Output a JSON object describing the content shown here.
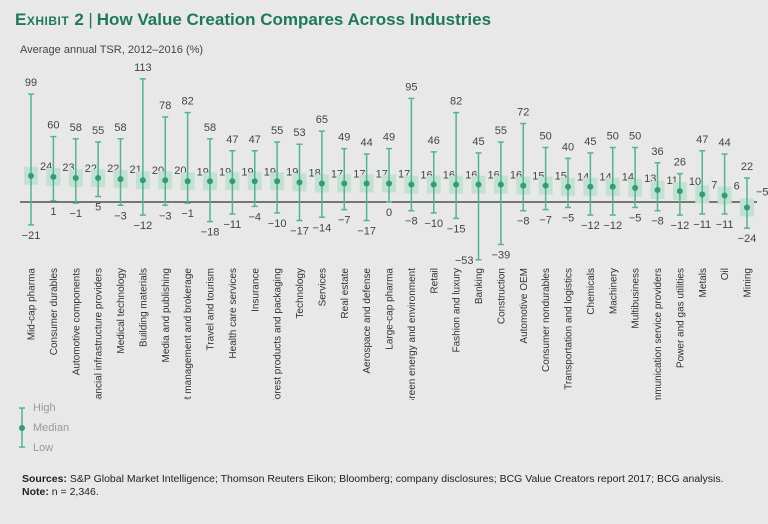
{
  "header": {
    "exhibit": "Exhibit 2",
    "title": "How Value Creation Compares Across Industries"
  },
  "chart_data": {
    "type": "range",
    "ylabel": "Average annual TSR, 2012–2016 (%)",
    "categories": [
      "Mid-cap pharma",
      "Consumer durables",
      "Automotive components",
      "Financial infrastructure providers",
      "Medical technology",
      "Building  materials",
      "Media and publishing",
      "Asset management and brokerage",
      "Travel and tourism",
      "Health care services",
      "Insurance",
      "Forest products and packaging",
      "Technology",
      "Services",
      "Real estate",
      "Aerospace and defense",
      "Large-cap pharma",
      "Green energy and environment",
      "Retail",
      "Fashion and luxury",
      "Banking",
      "Construction",
      "Automotive OEM",
      "Consumer nondurables",
      "Transportation and logistics",
      "Chemicals",
      "Machinery",
      "Multibusiness",
      "Communication service providers",
      "Power and gas utilities",
      "Metals",
      "Oil",
      "Mining"
    ],
    "series": [
      {
        "name": "High",
        "values": [
          99,
          60,
          58,
          55,
          58,
          113,
          78,
          82,
          58,
          47,
          47,
          55,
          53,
          65,
          49,
          44,
          49,
          95,
          46,
          82,
          45,
          55,
          72,
          50,
          40,
          45,
          50,
          50,
          36,
          26,
          47,
          44,
          22
        ]
      },
      {
        "name": "Median",
        "values": [
          24,
          23,
          22,
          22,
          21,
          20,
          20,
          19,
          19,
          19,
          19,
          19,
          18,
          17,
          17,
          17,
          17,
          16,
          16,
          16,
          16,
          16,
          15,
          15,
          14,
          14,
          14,
          13,
          11,
          10,
          7,
          6,
          -5
        ]
      },
      {
        "name": "Low",
        "values": [
          -21,
          1,
          -1,
          5,
          -3,
          -12,
          -3,
          -1,
          -18,
          -11,
          -4,
          -10,
          -17,
          -14,
          -7,
          -17,
          0,
          -8,
          -10,
          -15,
          -53,
          -39,
          -8,
          -7,
          -5,
          -12,
          -12,
          -5,
          -8,
          -12,
          -11,
          -11,
          -24
        ]
      }
    ],
    "grid": false,
    "legend": "bottom-left",
    "colors": {
      "line": "#4fb68f",
      "dot": "#2f9e74",
      "box": "#c3e1d3",
      "axis": "#333333"
    }
  },
  "legend": {
    "high": "High",
    "median": "Median",
    "low": "Low"
  },
  "footer": {
    "sources_label": "Sources:",
    "sources": " S&P Global Market Intelligence; Thomson Reuters Eikon; Bloomberg; company disclosures; BCG Value Creators report 2017; BCG analysis.",
    "note_label": "Note:",
    "note": " n = 2,346."
  }
}
